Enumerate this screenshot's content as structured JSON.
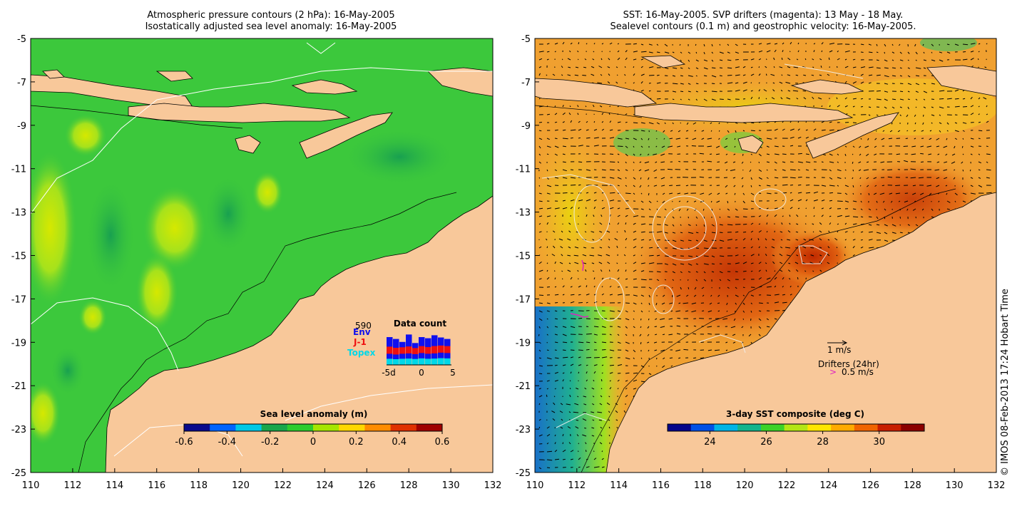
{
  "left_panel": {
    "title_line1": "Atmospheric pressure contours (2 hPa): 16-May-2005",
    "title_line2": "Isostatically adjusted sea level anomaly: 16-May-2005",
    "x_ticks": [
      "110",
      "112",
      "114",
      "116",
      "118",
      "120",
      "122",
      "124",
      "126",
      "128",
      "130",
      "132"
    ],
    "y_ticks": [
      "-5",
      "-7",
      "-9",
      "-11",
      "-13",
      "-15",
      "-17",
      "-19",
      "-21",
      "-23",
      "-25"
    ],
    "colorbar": {
      "title": "Sea level anomaly (m)",
      "ticks": [
        "-0.6",
        "-0.4",
        "-0.2",
        "0",
        "0.2",
        "0.4",
        "0.6"
      ],
      "colors": [
        "#0a0a8c",
        "#0064ff",
        "#00c8e6",
        "#1aa64b",
        "#2ecc2e",
        "#a6e600",
        "#ffd700",
        "#ff8c00",
        "#e03000",
        "#a00000"
      ]
    },
    "data_count": {
      "title": "Data count",
      "count": "590",
      "missions": [
        {
          "name": "Env",
          "color": "#1010ee"
        },
        {
          "name": "J-1",
          "color": "#ee1010"
        },
        {
          "name": "Topex",
          "color": "#00d8e8"
        }
      ],
      "x_ticks": [
        "-5d",
        "0",
        "5"
      ],
      "bars": [
        {
          "topex": 0.3,
          "j1": 0.35,
          "env": 0.75
        },
        {
          "topex": 0.28,
          "j1": 0.33,
          "env": 0.7
        },
        {
          "topex": 0.3,
          "j1": 0.32,
          "env": 0.55
        },
        {
          "topex": 0.31,
          "j1": 0.34,
          "env": 0.82
        },
        {
          "topex": 0.29,
          "j1": 0.3,
          "env": 0.35
        },
        {
          "topex": 0.32,
          "j1": 0.34,
          "env": 0.75
        },
        {
          "topex": 0.3,
          "j1": 0.33,
          "env": 0.72
        },
        {
          "topex": 0.31,
          "j1": 0.36,
          "env": 0.8
        },
        {
          "topex": 0.33,
          "j1": 0.35,
          "env": 0.74
        },
        {
          "topex": 0.32,
          "j1": 0.34,
          "env": 0.7
        }
      ]
    }
  },
  "right_panel": {
    "title_line1": "SST: 16-May-2005. SVP drifters (magenta): 13 May - 18 May.",
    "title_line2": "Sealevel contours (0.1 m) and geostrophic velocity: 16-May-2005.",
    "x_ticks": [
      "110",
      "112",
      "114",
      "116",
      "118",
      "120",
      "122",
      "124",
      "126",
      "128",
      "130",
      "132"
    ],
    "y_ticks": [
      "-5",
      "-7",
      "-9",
      "-11",
      "-13",
      "-15",
      "-17",
      "-19",
      "-21",
      "-23",
      "-25"
    ],
    "colorbar": {
      "title": "3-day SST composite (deg C)",
      "ticks": [
        "24",
        "26",
        "28",
        "30"
      ],
      "colors": [
        "#05058a",
        "#0050e6",
        "#00b4e6",
        "#14b48c",
        "#3cd228",
        "#b4e614",
        "#ffe600",
        "#ffaa00",
        "#f06400",
        "#c81e00",
        "#8c0000"
      ]
    },
    "scale_label": "1 m/s",
    "drifters_label": "Drifters (24hr)",
    "drifters_speed": "0.5 m/s",
    "drifter_marker": ">"
  },
  "credit": "© IMOS 08-Feb-2013 17:24 Hobart Time",
  "colors": {
    "land": "#f8c89a",
    "ssa_ocean": "#3cc83c",
    "sst_ocean": "#f0a030",
    "drifter": "#e020c0"
  }
}
